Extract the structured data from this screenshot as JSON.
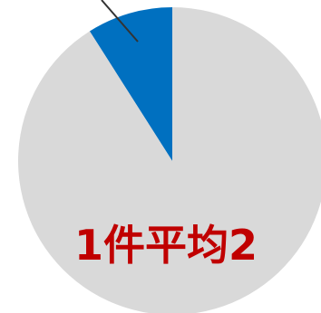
{
  "chart_data": {
    "type": "pie",
    "values": [
      9,
      91
    ],
    "colors": [
      "#0070c0",
      "#d9d9d9"
    ],
    "direction": "counterclockwise",
    "annotation": "1件平均2",
    "annotation_color": "#c00000"
  }
}
